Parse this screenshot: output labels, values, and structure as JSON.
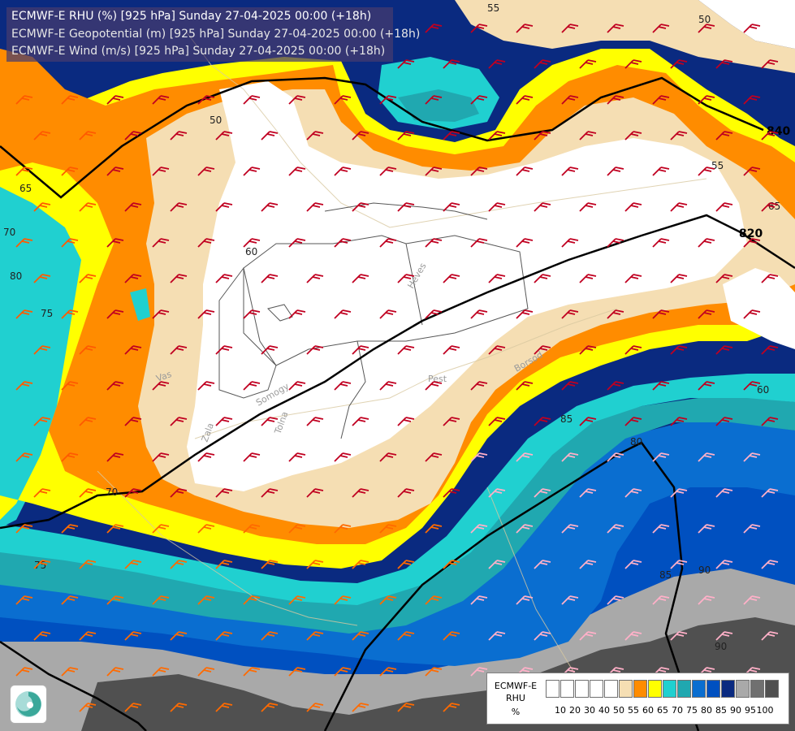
{
  "header": {
    "line1": "ECMWF-E RHU (%) [925 hPa] Sunday 27-04-2025 00:00 (+18h)",
    "line2": "ECMWF-E Geopotential (m) [925 hPa] Sunday 27-04-2025 00:00 (+18h)",
    "line3": "ECMWF-E Wind (m/s) [925 hPa] Sunday 27-04-2025 00:00 (+18h)"
  },
  "legend": {
    "model": "ECMWF-E",
    "variable": "RHU",
    "unit": "%",
    "ticks": [
      "10",
      "20",
      "30",
      "40",
      "50",
      "55",
      "60",
      "65",
      "70",
      "75",
      "80",
      "85",
      "90",
      "95",
      "100"
    ],
    "colors": [
      "#ffffff",
      "#ffffff",
      "#ffffff",
      "#ffffff",
      "#ffffff",
      "#f5deb3",
      "#ff8c00",
      "#ffff00",
      "#20d0d0",
      "#20a8b0",
      "#0a6ed0",
      "#0050c0",
      "#0a2a80",
      "#a9a9a9",
      "#707070",
      "#505050"
    ]
  },
  "geopotential_labels": {
    "upper": "840",
    "lower": "820"
  },
  "rhu_contour_labels": [
    "50",
    "55",
    "60",
    "65",
    "70",
    "75",
    "80",
    "85",
    "90",
    "50",
    "55",
    "60",
    "65",
    "70",
    "75",
    "80",
    "85",
    "90"
  ],
  "place_labels": [
    "Heves",
    "Pest",
    "Borsod",
    "Somogy",
    "Tolna",
    "Zala",
    "Vas"
  ],
  "colors": {
    "rhu_50": "#ffffff",
    "rhu_55": "#f5deb3",
    "rhu_60": "#ff8c00",
    "rhu_65": "#ffff00",
    "rhu_70": "#20d0d0",
    "rhu_75": "#20a8b0",
    "rhu_80": "#0a6ed0",
    "rhu_85": "#0050c0",
    "rhu_90": "#0a2a80",
    "rhu_95": "#a9a9a9",
    "rhu_100": "#505050"
  }
}
